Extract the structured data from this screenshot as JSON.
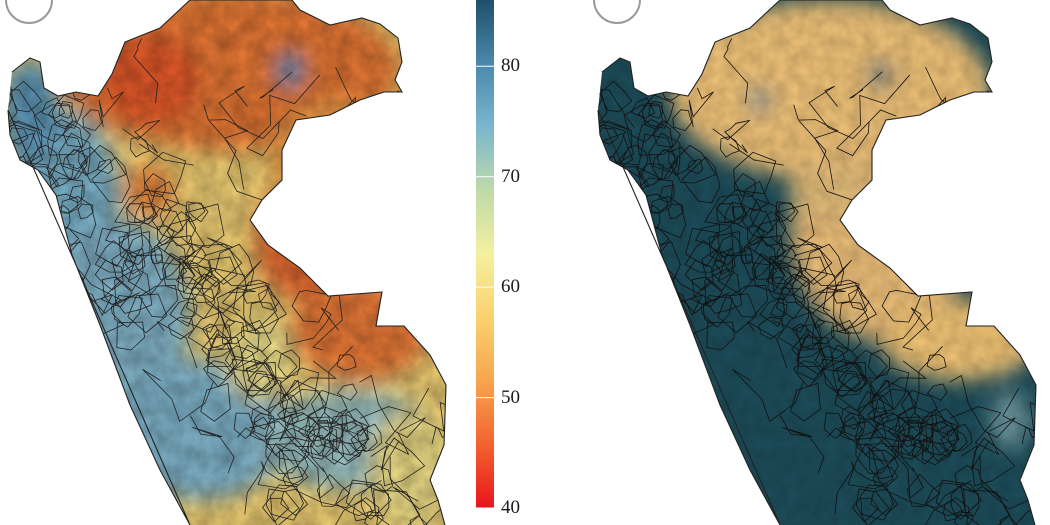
{
  "colorbar": {
    "ticks": [
      {
        "value": 80,
        "label": "80"
      },
      {
        "value": 70,
        "label": "70"
      },
      {
        "value": 60,
        "label": "60"
      },
      {
        "value": 50,
        "label": "50"
      },
      {
        "value": 40,
        "label": "40"
      }
    ],
    "range": [
      40,
      86
    ],
    "stops": [
      "#e8141c",
      "#f2632f",
      "#f7a54f",
      "#fad16f",
      "#f4f0a0",
      "#bfdaa8",
      "#7ab6cf",
      "#4a88aa",
      "#1f4f6a"
    ]
  },
  "maps": [
    {
      "name": "left-map",
      "palette": [
        "#e9682f",
        "#f29a46",
        "#f5d476",
        "#86b9cf",
        "#5f9dbf"
      ]
    },
    {
      "name": "right-map",
      "palette": [
        "#f5c777",
        "#e8c27a",
        "#2a6473",
        "#1d4e5c"
      ]
    }
  ]
}
